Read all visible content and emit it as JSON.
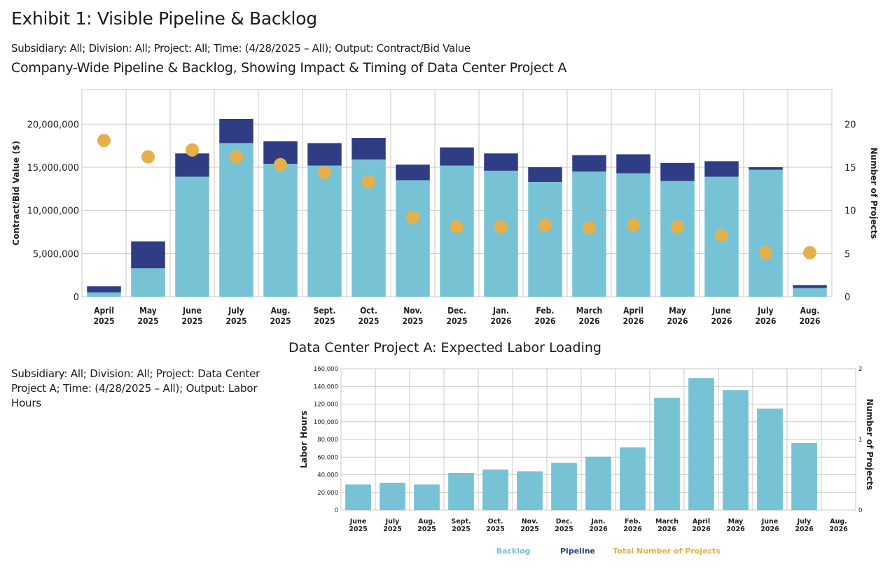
{
  "header": {
    "exhibit_title": "Exhibit 1: Visible Pipeline & Backlog",
    "filters_top": "Subsidiary: All; Division: All; Project: All; Time: (4/28/2025 – All); Output: Contract/Bid Value",
    "chart1_title": "Company-Wide Pipeline & Backlog, Showing Impact & Timing of Data Center Project A",
    "chart2_title": "Data Center Project A: Expected Labor Loading",
    "filters_bottom": "Subsidiary: All; Division: All; Project: Data Center Project A; Time: (4/28/2025 – All); Output: Labor Hours"
  },
  "colors": {
    "backlog": "#77c3d5",
    "pipeline": "#2f3d84",
    "projects": "#e5b04a",
    "grid": "#c8c8c8"
  },
  "legend": [
    {
      "label": "Backlog",
      "color": "#77c3d5"
    },
    {
      "label": "Pipeline",
      "color": "#2f3d84"
    },
    {
      "label": "Total Number of Projects",
      "color": "#e5b04a"
    }
  ],
  "chart_data": [
    {
      "type": "bar",
      "stacked": true,
      "title": "Company-Wide Pipeline & Backlog, Showing Impact & Timing of Data Center Project A",
      "xlabel": "",
      "ylabel": "Contract/Bid Value ($)",
      "y2label": "Number of Projects",
      "ylim": [
        0,
        24000000
      ],
      "y2lim": [
        0,
        24
      ],
      "yticks": [
        0,
        5000000,
        10000000,
        15000000,
        20000000
      ],
      "ytick_labels": [
        "0",
        "5,000,000",
        "10,000,000",
        "15,000,000",
        "20,000,000"
      ],
      "y2ticks": [
        0,
        5,
        10,
        15,
        20
      ],
      "y2tick_labels": [
        "0",
        "5",
        "10",
        "15",
        "20"
      ],
      "grid": true,
      "categories": [
        [
          "April",
          "2025"
        ],
        [
          "May",
          "2025"
        ],
        [
          "June",
          "2025"
        ],
        [
          "July",
          "2025"
        ],
        [
          "Aug.",
          "2025"
        ],
        [
          "Sept.",
          "2025"
        ],
        [
          "Oct.",
          "2025"
        ],
        [
          "Nov.",
          "2025"
        ],
        [
          "Dec.",
          "2025"
        ],
        [
          "Jan.",
          "2026"
        ],
        [
          "Feb.",
          "2026"
        ],
        [
          "March",
          "2026"
        ],
        [
          "April",
          "2026"
        ],
        [
          "May",
          "2026"
        ],
        [
          "June",
          "2026"
        ],
        [
          "July",
          "2026"
        ],
        [
          "Aug.",
          "2026"
        ]
      ],
      "series": [
        {
          "name": "Backlog",
          "type": "bar",
          "axis": "left",
          "values": [
            500000,
            3300000,
            13900000,
            17800000,
            15400000,
            15200000,
            15900000,
            13500000,
            15200000,
            14600000,
            13300000,
            14500000,
            14300000,
            13400000,
            13900000,
            14700000,
            1000000
          ]
        },
        {
          "name": "Pipeline",
          "type": "bar",
          "axis": "left",
          "values": [
            700000,
            3100000,
            2700000,
            2800000,
            2600000,
            2600000,
            2500000,
            1800000,
            2100000,
            2000000,
            1700000,
            1900000,
            2200000,
            2100000,
            1800000,
            300000,
            350000
          ]
        },
        {
          "name": "Total Number of Projects",
          "type": "scatter",
          "axis": "right",
          "values": [
            18.1,
            16.2,
            17.0,
            16.2,
            15.3,
            14.4,
            13.3,
            9.2,
            8.1,
            8.1,
            8.3,
            8.0,
            8.3,
            8.1,
            7.1,
            5.1,
            5.1
          ]
        }
      ]
    },
    {
      "type": "bar",
      "title": "Data Center Project A: Expected Labor Loading",
      "xlabel": "",
      "ylabel": "Labor Hours",
      "y2label": "Number of Projects",
      "ylim": [
        0,
        160000
      ],
      "y2lim": [
        0,
        2
      ],
      "yticks": [
        0,
        20000,
        40000,
        60000,
        80000,
        100000,
        120000,
        140000,
        160000
      ],
      "ytick_labels": [
        "0",
        "20,000",
        "40,000",
        "60,000",
        "80,000",
        "100,000",
        "120,000",
        "140,000",
        "160,000"
      ],
      "y2ticks": [
        0,
        1,
        2
      ],
      "y2tick_labels": [
        "0",
        "1",
        "2"
      ],
      "grid": true,
      "categories": [
        [
          "June",
          "2025"
        ],
        [
          "July",
          "2025"
        ],
        [
          "Aug.",
          "2025"
        ],
        [
          "Sept.",
          "2025"
        ],
        [
          "Oct.",
          "2025"
        ],
        [
          "Nov.",
          "2025"
        ],
        [
          "Dec.",
          "2025"
        ],
        [
          "Jan.",
          "2026"
        ],
        [
          "Feb.",
          "2026"
        ],
        [
          "March",
          "2026"
        ],
        [
          "April",
          "2026"
        ],
        [
          "May",
          "2026"
        ],
        [
          "June",
          "2026"
        ],
        [
          "July",
          "2026"
        ],
        [
          "Aug.",
          "2026"
        ]
      ],
      "series": [
        {
          "name": "Backlog",
          "type": "bar",
          "axis": "left",
          "values": [
            29000,
            31000,
            29000,
            42000,
            46000,
            44000,
            53500,
            60500,
            71000,
            127000,
            149500,
            136000,
            115000,
            76000,
            0
          ]
        }
      ],
      "legend": [
        "Backlog",
        "Pipeline",
        "Total Number of Projects"
      ],
      "legend_position": "bottom"
    }
  ]
}
